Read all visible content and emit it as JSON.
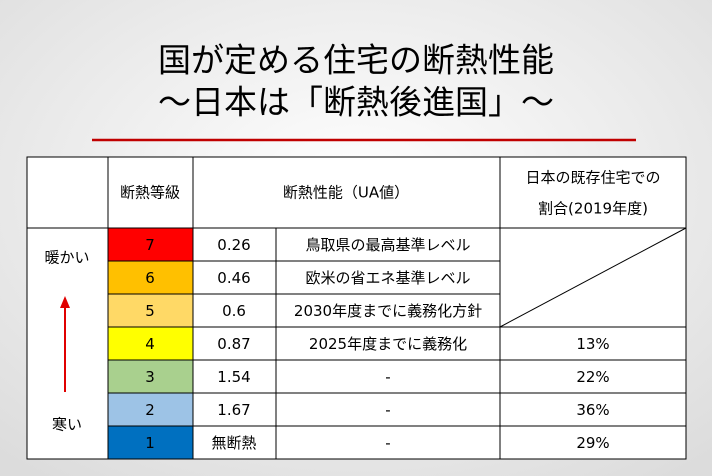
{
  "title": {
    "line1": "国が定める住宅の断熱性能",
    "line2": "～日本は「断熱後進国」～"
  },
  "table": {
    "header": {
      "grade": "断熱等級",
      "performance": "断熱性能（UA値）",
      "share_line1": "日本の既存住宅での",
      "share_line2": "割合(2019年度)"
    },
    "side": {
      "warm": "暖かい",
      "cold": "寒い"
    },
    "rows": [
      {
        "grade": "7",
        "ua": "0.26",
        "desc": "鳥取県の最高基準レベル",
        "color": "#ff0000"
      },
      {
        "grade": "6",
        "ua": "0.46",
        "desc": "欧米の省エネ基準レベル",
        "color": "#ffc000"
      },
      {
        "grade": "5",
        "ua": "0.6",
        "desc": "2030年度までに義務化方針",
        "color": "#ffd966"
      },
      {
        "grade": "4",
        "ua": "0.87",
        "desc": "2025年度までに義務化",
        "share": "13%",
        "color": "#ffff00"
      },
      {
        "grade": "3",
        "ua": "1.54",
        "desc": "-",
        "share": "22%",
        "color": "#a9d08e"
      },
      {
        "grade": "2",
        "ua": "1.67",
        "desc": "-",
        "share": "36%",
        "color": "#9dc3e6"
      },
      {
        "grade": "1",
        "ua": "無断熱",
        "desc": "-",
        "share": "29%",
        "color": "#0070c0"
      }
    ]
  }
}
